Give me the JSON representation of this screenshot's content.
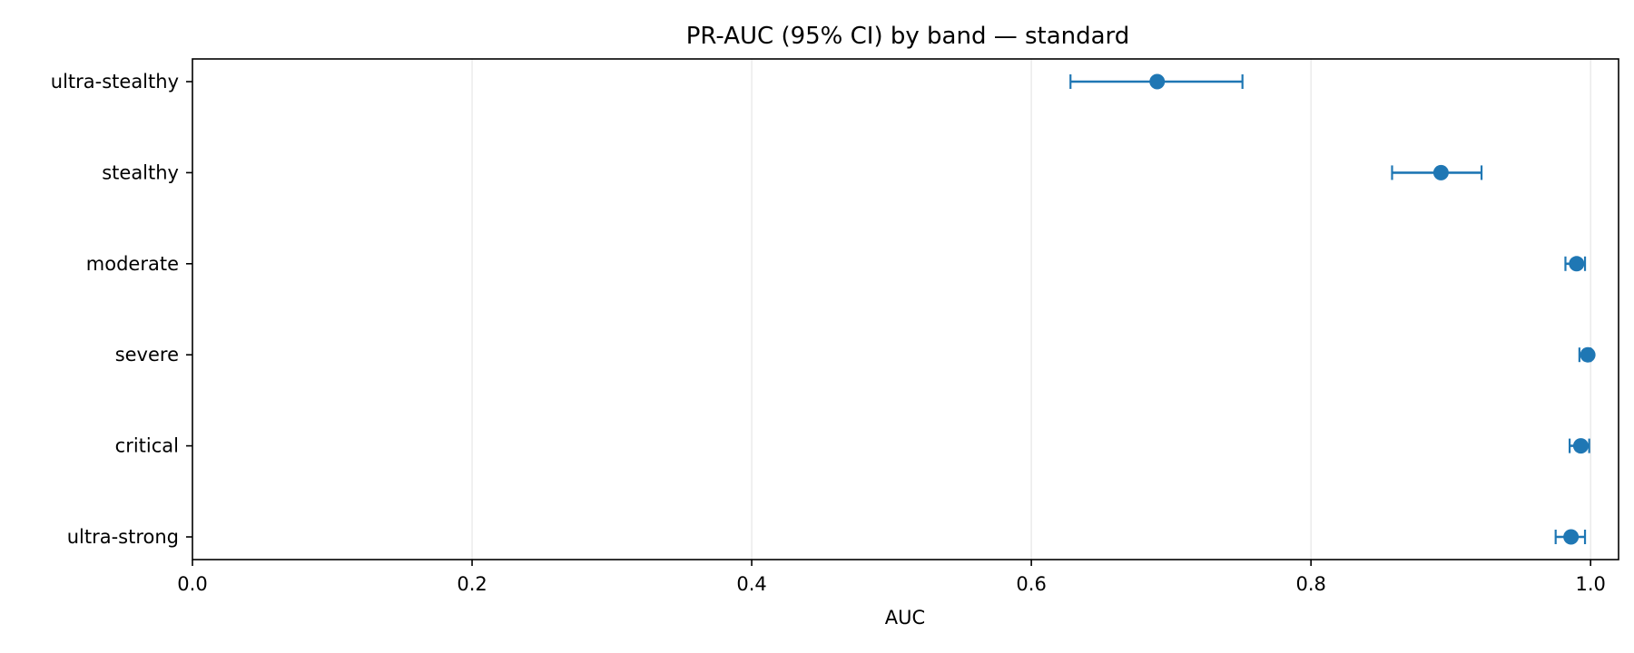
{
  "chart_data": {
    "type": "scatter",
    "title": "PR-AUC (95% CI) by band — standard",
    "xlabel": "AUC",
    "ylabel": "",
    "xlim": [
      0.0,
      1.02
    ],
    "xticks": [
      0.0,
      0.2,
      0.4,
      0.6,
      0.8,
      1.0
    ],
    "xtick_labels": [
      "0.0",
      "0.2",
      "0.4",
      "0.6",
      "0.8",
      "1.0"
    ],
    "grid": "vertical",
    "color": "#1f77b4",
    "categories": [
      "ultra-stealthy",
      "stealthy",
      "moderate",
      "severe",
      "critical",
      "ultra-strong"
    ],
    "series": [
      {
        "values": [
          0.69,
          0.893,
          0.99,
          0.998,
          0.993,
          0.986
        ],
        "ci_low": [
          0.628,
          0.858,
          0.982,
          0.992,
          0.985,
          0.975
        ],
        "ci_high": [
          0.751,
          0.922,
          0.996,
          1.0,
          0.999,
          0.996
        ]
      }
    ]
  }
}
